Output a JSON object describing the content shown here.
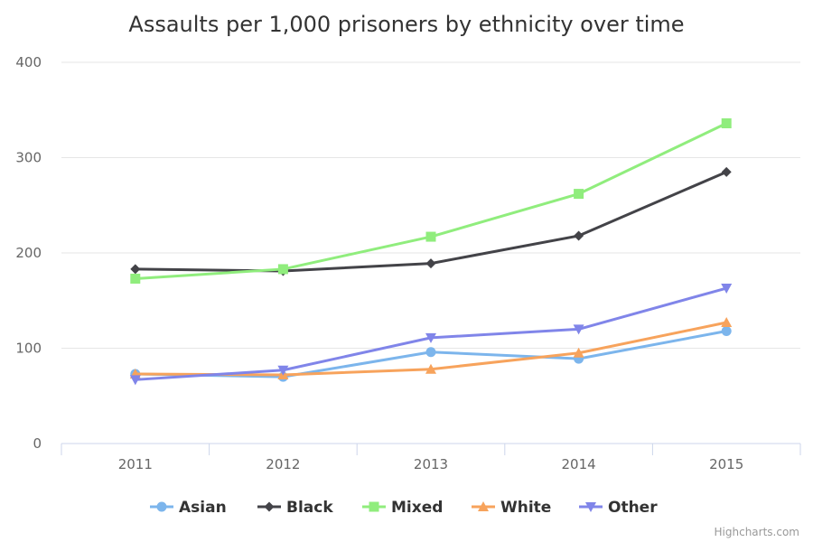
{
  "chart_data": {
    "type": "line",
    "title": "Assaults per 1,000 prisoners by ethnicity over time",
    "categories": [
      "2011",
      "2012",
      "2013",
      "2014",
      "2015"
    ],
    "ylim": [
      0,
      400
    ],
    "yticks": [
      0,
      100,
      200,
      300,
      400
    ],
    "grid": true,
    "legend_position": "bottom-center",
    "series": [
      {
        "name": "Asian",
        "color": "#7cb5ec",
        "marker": "circle",
        "values": [
          73,
          70,
          96,
          89,
          118
        ]
      },
      {
        "name": "Black",
        "color": "#434348",
        "marker": "diamond",
        "values": [
          183,
          181,
          189,
          218,
          285
        ]
      },
      {
        "name": "Mixed",
        "color": "#90ed7d",
        "marker": "square",
        "values": [
          173,
          183,
          217,
          262,
          336
        ]
      },
      {
        "name": "White",
        "color": "#f7a35c",
        "marker": "triangle",
        "values": [
          73,
          72,
          78,
          95,
          127
        ]
      },
      {
        "name": "Other",
        "color": "#8085e9",
        "marker": "triangle-down",
        "values": [
          67,
          77,
          111,
          120,
          163
        ]
      }
    ]
  },
  "credits": "Highcharts.com"
}
